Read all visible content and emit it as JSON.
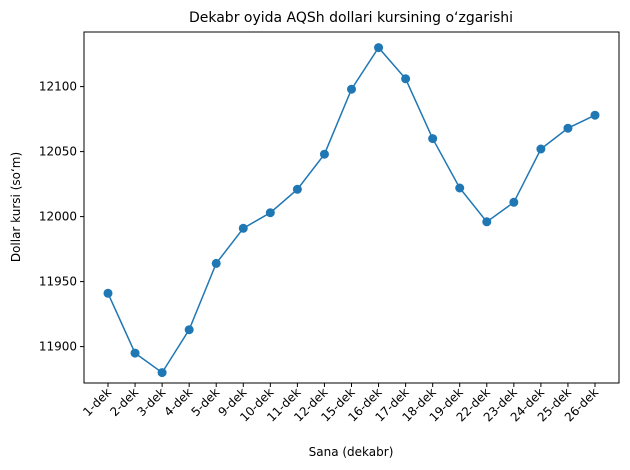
{
  "chart_data": {
    "type": "line",
    "title": "Dekabr oyida AQSh dollari kursining o‘zgarishi",
    "x_label": "Sana (dekabr)",
    "y_label": "Dollar kursi (so‘m)",
    "categories": [
      "1-dek",
      "2-dek",
      "3-dek",
      "4-dek",
      "5-dek",
      "9-dek",
      "10-dek",
      "11-dek",
      "12-dek",
      "15-dek",
      "16-dek",
      "17-dek",
      "18-dek",
      "19-dek",
      "22-dek",
      "23-dek",
      "24-dek",
      "25-dek",
      "26-dek"
    ],
    "values": [
      11941,
      11895,
      11880,
      11913,
      11964,
      11991,
      12003,
      12021,
      12048,
      12098,
      12130,
      12106,
      12060,
      12022,
      11996,
      12011,
      12052,
      12068,
      12078
    ],
    "color": "#1f77b4",
    "marker": true,
    "grid": false,
    "ylim": [
      11872,
      12142
    ],
    "yticks": [
      11900,
      11950,
      12000,
      12050,
      12100
    ]
  }
}
